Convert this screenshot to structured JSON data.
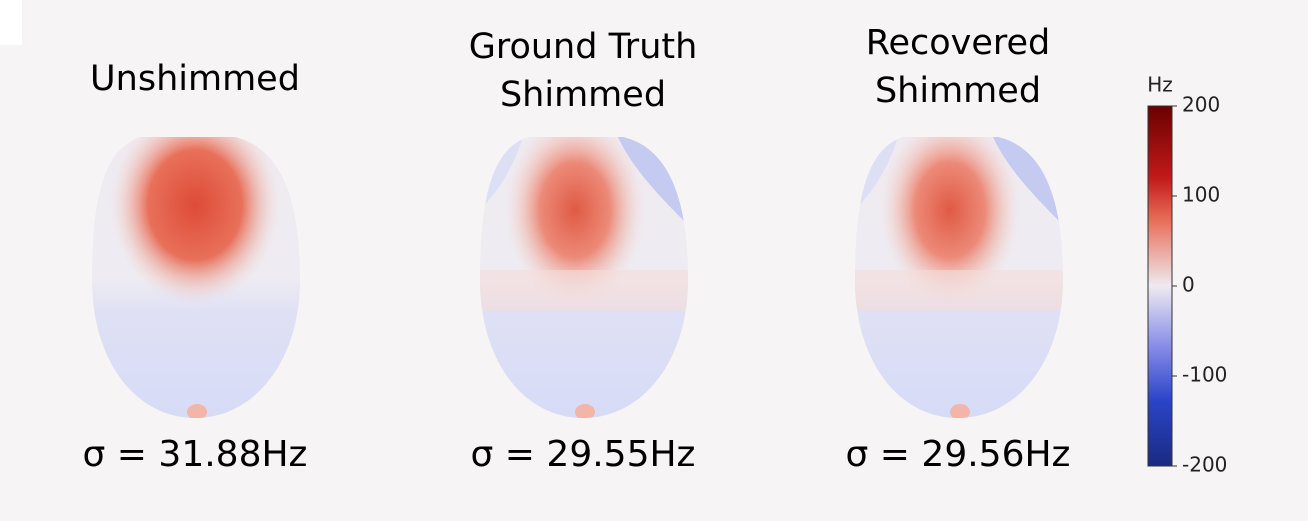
{
  "panels": [
    {
      "title": [
        "Unshimmed"
      ],
      "sigma": "σ = 31.88Hz"
    },
    {
      "title": [
        "Ground Truth",
        "Shimmed"
      ],
      "sigma": "σ = 29.55Hz"
    },
    {
      "title": [
        "Recovered",
        "Shimmed"
      ],
      "sigma": "σ = 29.56Hz"
    }
  ],
  "colorbar": {
    "label": "Hz",
    "lim": [
      -200,
      200
    ],
    "ticks": [
      -200,
      -100,
      0,
      100,
      200
    ]
  }
}
